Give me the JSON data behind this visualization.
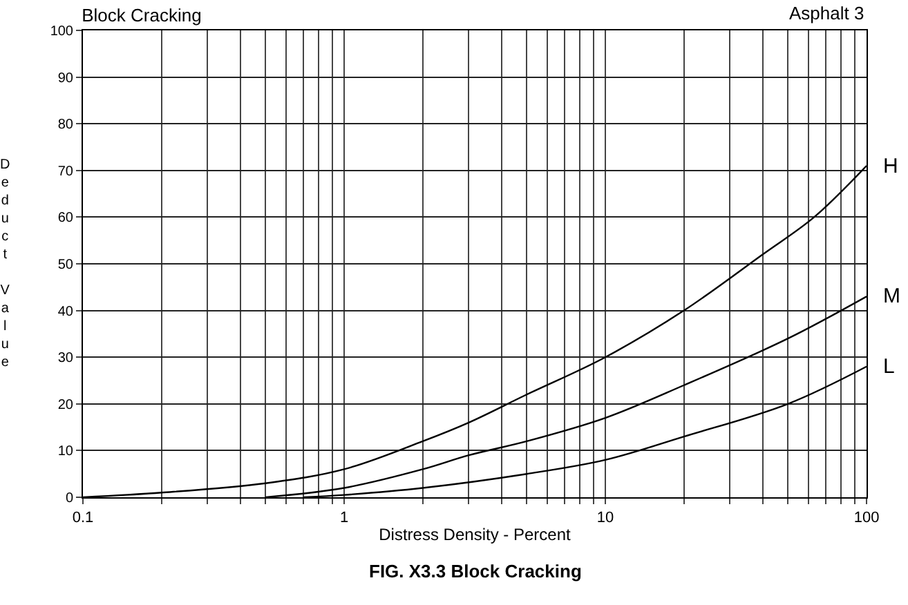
{
  "chart_data": {
    "type": "line",
    "title": "Block Cracking",
    "xlabel": "Distress Density - Percent",
    "ylabel": "Deduct Value",
    "annotations": [
      "Asphalt 3",
      "FIG. X3.3 Block Cracking"
    ],
    "log": "x",
    "grid": true,
    "legend": false,
    "marker": "none",
    "line_style": "solid",
    "xlim": [
      0.1,
      100
    ],
    "ylim": [
      0,
      100
    ],
    "xticks": [
      0.1,
      {
        "value": 0.2,
        "label": null
      },
      {
        "value": 0.3,
        "label": null
      },
      {
        "value": 0.4,
        "label": null
      },
      {
        "value": 0.5,
        "label": null
      },
      {
        "value": 0.6,
        "label": null
      },
      {
        "value": 0.7,
        "label": null
      },
      {
        "value": 0.8,
        "label": null
      },
      {
        "value": 0.9,
        "label": null
      },
      1,
      {
        "value": 2,
        "label": null
      },
      {
        "value": 3,
        "label": null
      },
      {
        "value": 4,
        "label": null
      },
      {
        "value": 5,
        "label": null
      },
      {
        "value": 6,
        "label": null
      },
      {
        "value": 7,
        "label": null
      },
      {
        "value": 8,
        "label": null
      },
      {
        "value": 9,
        "label": null
      },
      10,
      {
        "value": 20,
        "label": null
      },
      {
        "value": 30,
        "label": null
      },
      {
        "value": 40,
        "label": null
      },
      {
        "value": 50,
        "label": null
      },
      {
        "value": 60,
        "label": null
      },
      {
        "value": 70,
        "label": null
      },
      {
        "value": 80,
        "label": null
      },
      {
        "value": 90,
        "label": null
      },
      100
    ],
    "yticks": [
      0,
      10,
      20,
      30,
      40,
      50,
      60,
      70,
      80,
      90,
      100
    ],
    "series": [
      {
        "name": "H",
        "color": "#000000",
        "x": [
          0.1,
          0.2,
          0.5,
          1,
          2,
          3,
          5,
          10,
          20,
          40,
          63,
          100
        ],
        "values": [
          0,
          1,
          3,
          6,
          12,
          16,
          22,
          30,
          40,
          52,
          60,
          71
        ]
      },
      {
        "name": "M",
        "color": "#000000",
        "x": [
          0.5,
          1,
          2,
          3,
          5,
          10,
          20,
          50,
          100
        ],
        "values": [
          0,
          2,
          6,
          9,
          12,
          17,
          24,
          34,
          43
        ]
      },
      {
        "name": "L",
        "color": "#000000",
        "x": [
          0.7,
          1,
          2,
          5,
          10,
          20,
          50,
          100
        ],
        "values": [
          0,
          0.5,
          2,
          5,
          8,
          13,
          20,
          28
        ]
      }
    ]
  }
}
